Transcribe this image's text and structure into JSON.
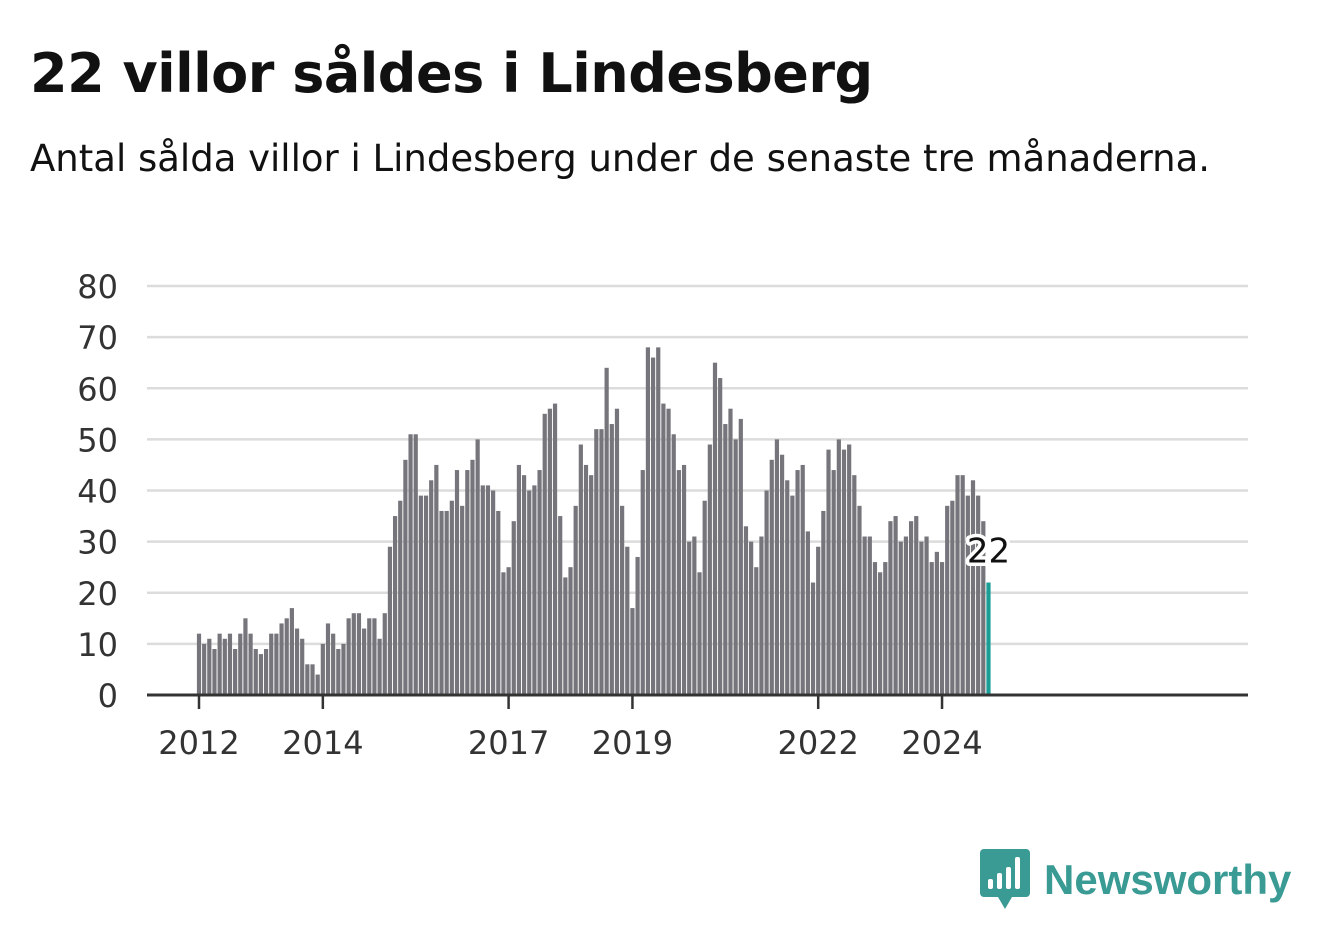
{
  "header": {
    "title": "22 villor såldes i Lindesberg",
    "subtitle": "Antal sålda villor i Lindesberg under de senaste tre månaderna."
  },
  "brand": {
    "name": "Newsworthy",
    "icon": "newsworthy-logo-icon",
    "color": "#3a9a94"
  },
  "chart_data": {
    "type": "bar",
    "start": "2012-01",
    "frequency": "monthly",
    "values": [
      12,
      10,
      11,
      9,
      12,
      11,
      12,
      9,
      12,
      15,
      12,
      9,
      8,
      9,
      12,
      12,
      14,
      15,
      17,
      13,
      11,
      6,
      6,
      4,
      10,
      14,
      12,
      9,
      10,
      15,
      16,
      16,
      13,
      15,
      15,
      11,
      16,
      29,
      35,
      38,
      46,
      51,
      51,
      39,
      39,
      42,
      45,
      36,
      36,
      38,
      44,
      37,
      44,
      46,
      50,
      41,
      41,
      40,
      36,
      24,
      25,
      34,
      45,
      43,
      40,
      41,
      44,
      55,
      56,
      57,
      35,
      23,
      25,
      37,
      49,
      45,
      43,
      52,
      52,
      64,
      53,
      56,
      37,
      29,
      17,
      27,
      44,
      68,
      66,
      68,
      57,
      56,
      51,
      44,
      45,
      30,
      31,
      24,
      38,
      49,
      65,
      62,
      53,
      56,
      50,
      54,
      33,
      30,
      25,
      31,
      40,
      46,
      50,
      47,
      42,
      39,
      44,
      45,
      32,
      22,
      29,
      36,
      48,
      44,
      50,
      48,
      49,
      43,
      37,
      31,
      31,
      26,
      24,
      26,
      34,
      35,
      30,
      31,
      34,
      35,
      30,
      31,
      26,
      28,
      26,
      37,
      38,
      43,
      43,
      39,
      42,
      39,
      34,
      22
    ],
    "x_ticks": [
      "2012",
      "2014",
      "2017",
      "2019",
      "2022",
      "2024"
    ],
    "y_ticks": [
      0,
      10,
      20,
      30,
      40,
      50,
      60,
      70,
      80
    ],
    "ylim": [
      0,
      80
    ],
    "highlight": {
      "label": "22",
      "value": 22,
      "color": "#1a9e96"
    },
    "bar_color": "#76757b",
    "grid": true,
    "xlabel": "",
    "ylabel": ""
  }
}
